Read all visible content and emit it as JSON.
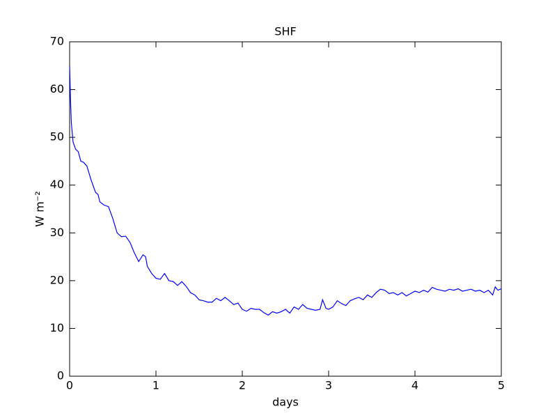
{
  "chart_data": {
    "type": "line",
    "title": "SHF",
    "xlabel": "days",
    "ylabel": "W m⁻²",
    "x": [
      0,
      0.01,
      0.02,
      0.04,
      0.07,
      0.1,
      0.13,
      0.16,
      0.2,
      0.25,
      0.3,
      0.33,
      0.35,
      0.4,
      0.45,
      0.5,
      0.55,
      0.6,
      0.65,
      0.7,
      0.75,
      0.8,
      0.85,
      0.88,
      0.9,
      0.95,
      1.0,
      1.05,
      1.1,
      1.15,
      1.2,
      1.25,
      1.3,
      1.35,
      1.4,
      1.45,
      1.5,
      1.55,
      1.6,
      1.65,
      1.7,
      1.75,
      1.8,
      1.85,
      1.9,
      1.95,
      2.0,
      2.05,
      2.1,
      2.15,
      2.2,
      2.25,
      2.3,
      2.35,
      2.4,
      2.45,
      2.5,
      2.55,
      2.6,
      2.65,
      2.7,
      2.75,
      2.8,
      2.85,
      2.9,
      2.93,
      2.97,
      3.0,
      3.05,
      3.1,
      3.15,
      3.2,
      3.25,
      3.3,
      3.35,
      3.4,
      3.45,
      3.5,
      3.55,
      3.6,
      3.65,
      3.7,
      3.75,
      3.8,
      3.85,
      3.9,
      3.95,
      4.0,
      4.05,
      4.1,
      4.15,
      4.2,
      4.25,
      4.3,
      4.35,
      4.4,
      4.45,
      4.5,
      4.55,
      4.6,
      4.65,
      4.7,
      4.75,
      4.8,
      4.85,
      4.9,
      4.93,
      4.96,
      5.0
    ],
    "series": [
      {
        "color": "#0000ff",
        "values": [
          65,
          58,
          53,
          49,
          47.5,
          47,
          45,
          44.8,
          44,
          41,
          38.5,
          38,
          36.5,
          35.8,
          35.5,
          33,
          30,
          29.2,
          29.3,
          28,
          25.8,
          24,
          25.4,
          25,
          23,
          21.5,
          20.5,
          20.3,
          21.5,
          20,
          19.8,
          19,
          19.8,
          18.8,
          17.5,
          17,
          16,
          15.8,
          15.5,
          15.5,
          16.3,
          15.8,
          16.5,
          15.8,
          15,
          15.3,
          14,
          13.6,
          14.2,
          14,
          14,
          13.3,
          12.8,
          13.5,
          13.2,
          13.5,
          14,
          13.2,
          14.5,
          14,
          15,
          14.2,
          14,
          13.8,
          14,
          16,
          14.2,
          14,
          14.5,
          15.8,
          15.2,
          14.8,
          15.8,
          16.2,
          16.5,
          16,
          17,
          16.5,
          17.5,
          18.2,
          18,
          17.3,
          17.5,
          17,
          17.5,
          16.8,
          17.3,
          17.8,
          17.5,
          18,
          17.6,
          18.6,
          18.2,
          18,
          17.8,
          18.2,
          18,
          18.3,
          17.8,
          18,
          18.2,
          17.8,
          18,
          17.5,
          18,
          17,
          18.7,
          18,
          18.3
        ]
      }
    ],
    "xlim": [
      0,
      5
    ],
    "xticks": [
      0,
      1,
      2,
      3,
      4,
      5
    ],
    "ylim": [
      0,
      70
    ],
    "yticks": [
      0,
      10,
      20,
      30,
      40,
      50,
      60,
      70
    ]
  }
}
